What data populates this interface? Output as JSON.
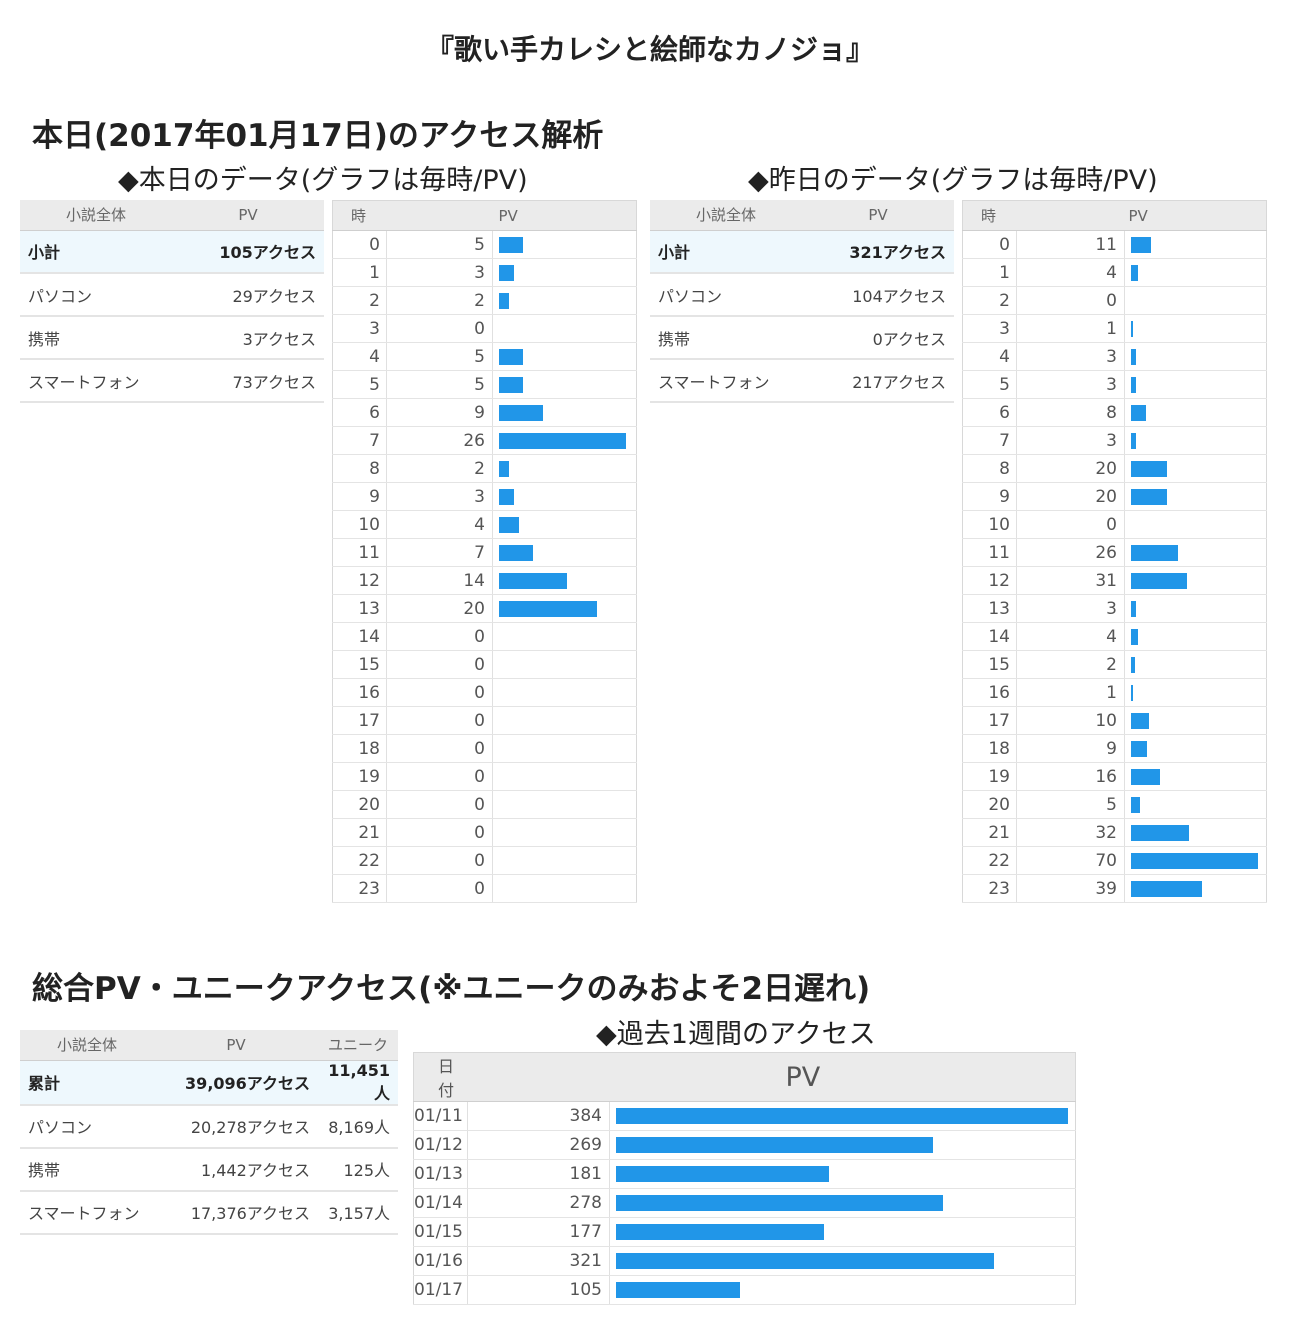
{
  "novel_title": "『歌い手カレシと絵師なカノジョ』",
  "today_section_title": "本日(2017年01月17日)のアクセス解析",
  "today": {
    "title": "◆本日のデータ(グラフは毎時/PV)",
    "summary": {
      "headers": [
        "小説全体",
        "PV"
      ],
      "rows": [
        {
          "label": "小計",
          "value": "105アクセス"
        },
        {
          "label": "パソコン",
          "value": "29アクセス"
        },
        {
          "label": "携帯",
          "value": "3アクセス"
        },
        {
          "label": "スマートフォン",
          "value": "73アクセス"
        }
      ]
    },
    "hourly": {
      "headers": [
        "時",
        "PV"
      ],
      "values": [
        5,
        3,
        2,
        0,
        5,
        5,
        9,
        26,
        2,
        3,
        4,
        7,
        14,
        20,
        0,
        0,
        0,
        0,
        0,
        0,
        0,
        0,
        0,
        0
      ]
    }
  },
  "yesterday": {
    "title": "◆昨日のデータ(グラフは毎時/PV)",
    "summary": {
      "headers": [
        "小説全体",
        "PV"
      ],
      "rows": [
        {
          "label": "小計",
          "value": "321アクセス"
        },
        {
          "label": "パソコン",
          "value": "104アクセス"
        },
        {
          "label": "携帯",
          "value": "0アクセス"
        },
        {
          "label": "スマートフォン",
          "value": "217アクセス"
        }
      ]
    },
    "hourly": {
      "headers": [
        "時",
        "PV"
      ],
      "values": [
        11,
        4,
        0,
        1,
        3,
        3,
        8,
        3,
        20,
        20,
        0,
        26,
        31,
        3,
        4,
        2,
        1,
        10,
        9,
        16,
        5,
        32,
        70,
        39
      ]
    }
  },
  "total_section_title": "総合PV・ユニークアクセス(※ユニークのみおよそ2日遅れ)",
  "total": {
    "headers": [
      "小説全体",
      "PV",
      "ユニーク"
    ],
    "rows": [
      {
        "label": "累計",
        "pv": "39,096アクセス",
        "unique": "11,451人"
      },
      {
        "label": "パソコン",
        "pv": "20,278アクセス",
        "unique": "8,169人"
      },
      {
        "label": "携帯",
        "pv": "1,442アクセス",
        "unique": "125人"
      },
      {
        "label": "スマートフォン",
        "pv": "17,376アクセス",
        "unique": "3,157人"
      }
    ]
  },
  "week": {
    "title": "◆過去1週間のアクセス",
    "headers": [
      "日付",
      "PV"
    ],
    "rows": [
      {
        "date": "01/11",
        "pv": 384
      },
      {
        "date": "01/12",
        "pv": 269
      },
      {
        "date": "01/13",
        "pv": 181
      },
      {
        "date": "01/14",
        "pv": 278
      },
      {
        "date": "01/15",
        "pv": 177
      },
      {
        "date": "01/16",
        "pv": 321
      },
      {
        "date": "01/17",
        "pv": 105
      }
    ]
  },
  "colors": {
    "bar": "#2196e8",
    "header_bg": "#ebebeb",
    "subtotal_bg": "#eef8fd"
  }
}
